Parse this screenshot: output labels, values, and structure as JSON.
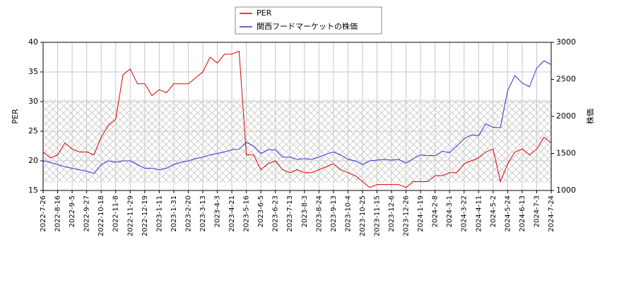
{
  "chart_data": {
    "type": "line",
    "categories": [
      "2022-7-26",
      null,
      "2022-8-16",
      null,
      "2022-9-5",
      null,
      "2022-9-27",
      null,
      "2022-10-18",
      null,
      "2022-11-8",
      null,
      "2022-11-29",
      null,
      "2022-12-19",
      null,
      "2023-1-11",
      null,
      "2023-1-31",
      null,
      "2023-2-20",
      null,
      "2023-3-13",
      null,
      "2023-4-3",
      null,
      "2023-4-21",
      null,
      "2023-5-16",
      null,
      "2023-6-5",
      null,
      "2023-6-23",
      null,
      "2023-7-13",
      null,
      "2023-8-3",
      null,
      "2023-8-24",
      null,
      "2023-9-13",
      null,
      "2023-10-4",
      null,
      "2023-10-25",
      null,
      "2023-11-15",
      null,
      "2023-12-6",
      null,
      "2023-12-26",
      null,
      "2024-1-19",
      null,
      "2024-2-8",
      null,
      "2024-3-1",
      null,
      "2024-3-22",
      null,
      "2024-4-11",
      null,
      "2024-5-2",
      null,
      "2024-5-24",
      null,
      "2024-6-13",
      null,
      "2024-7-3",
      null,
      "2024-7-24"
    ],
    "series": [
      {
        "name": "PER",
        "color": "#dd0000",
        "values": [
          21.5,
          20.5,
          21,
          23,
          22,
          21.5,
          21.5,
          21,
          24,
          26,
          27,
          34.5,
          35.5,
          33,
          33,
          31,
          32,
          31.5,
          33,
          33,
          33,
          34,
          35,
          37.5,
          36.5,
          38,
          38,
          38.5,
          21,
          21,
          18.5,
          19.5,
          20,
          18.5,
          18,
          18.5,
          18,
          18,
          18.5,
          19,
          19.5,
          18.5,
          18,
          17.5,
          16.5,
          15.5,
          16,
          16,
          16,
          16,
          15.5,
          16.5,
          16.5,
          16.5,
          17.5,
          17.5,
          18,
          18,
          19.5,
          20,
          20.5,
          21.5,
          22,
          16.5,
          19.5,
          21.5,
          22,
          21,
          22,
          24,
          23
        ]
      },
      {
        "name": "関西フードマーケットの株価",
        "color": "#3333cc",
        "axis": "y2",
        "values": [
          1400,
          1380,
          1350,
          1320,
          1300,
          1280,
          1260,
          1230,
          1350,
          1400,
          1380,
          1400,
          1400,
          1350,
          1300,
          1300,
          1280,
          1300,
          1350,
          1380,
          1400,
          1430,
          1450,
          1480,
          1500,
          1520,
          1550,
          1560,
          1650,
          1600,
          1500,
          1550,
          1550,
          1450,
          1450,
          1420,
          1430,
          1420,
          1450,
          1490,
          1520,
          1480,
          1420,
          1400,
          1350,
          1400,
          1410,
          1420,
          1410,
          1420,
          1370,
          1430,
          1480,
          1470,
          1470,
          1530,
          1510,
          1600,
          1700,
          1750,
          1740,
          1900,
          1850,
          1850,
          2350,
          2550,
          2450,
          2400,
          2650,
          2750,
          2700
        ]
      }
    ],
    "ylabel": "PER",
    "y2label": "株価",
    "ylim": [
      15,
      40
    ],
    "yticks": [
      15,
      20,
      25,
      30,
      35,
      40
    ],
    "y2lim": [
      1000,
      3000
    ],
    "y2ticks": [
      1000,
      1500,
      2000,
      2500,
      3000
    ],
    "grid": true
  }
}
